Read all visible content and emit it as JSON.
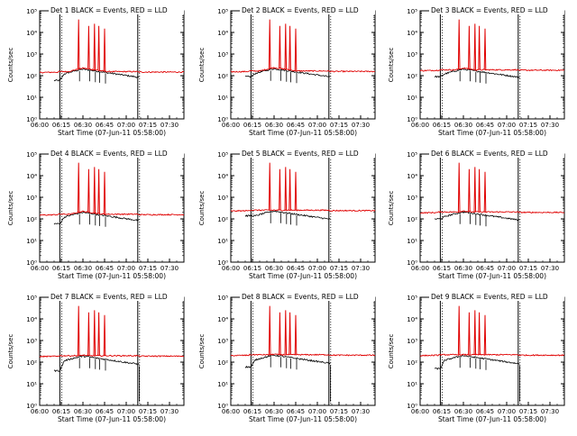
{
  "chart_data": {
    "type": "line",
    "layout": "3x3 grid of small-multiple panels",
    "y_scale": "log",
    "ylim": [
      1,
      100000
    ],
    "ytick_labels": [
      "10⁰",
      "10¹",
      "10²",
      "10³",
      "10⁴",
      "10⁵"
    ],
    "ylabel": "Counts/sec",
    "xlim": [
      "06:00",
      "07:40"
    ],
    "xtick_labels": [
      "06:00",
      "06:15",
      "06:30",
      "06:45",
      "07:00",
      "07:15",
      "07:30"
    ],
    "xlabel": "Start Time (07-Jun-11 05:58:00)",
    "legend": {
      "text": "BLACK = Events, RED = LLD",
      "placement": "top-left, inside title"
    },
    "vertical_markers": [
      "06:14",
      "07:08"
    ],
    "colors": {
      "events": "#000000",
      "lld": "#e00000"
    },
    "panels": [
      {
        "title": "Det 1",
        "events_base": 60,
        "lld_base": 140,
        "peak": 200,
        "late_drop": false
      },
      {
        "title": "Det 2",
        "events_base": 90,
        "lld_base": 150,
        "peak": 210,
        "late_drop": false
      },
      {
        "title": "Det 3",
        "events_base": 90,
        "lld_base": 170,
        "peak": 200,
        "late_drop": false
      },
      {
        "title": "Det 4",
        "events_base": 60,
        "lld_base": 150,
        "peak": 200,
        "late_drop": false
      },
      {
        "title": "Det 5",
        "events_base": 140,
        "lld_base": 230,
        "peak": 230,
        "late_drop": false
      },
      {
        "title": "Det 6",
        "events_base": 100,
        "lld_base": 190,
        "peak": 210,
        "late_drop": false
      },
      {
        "title": "Det 7",
        "events_base": 40,
        "lld_base": 180,
        "peak": 190,
        "late_drop": true
      },
      {
        "title": "Det 8",
        "events_base": 60,
        "lld_base": 200,
        "peak": 210,
        "late_drop": true
      },
      {
        "title": "Det 9",
        "events_base": 50,
        "lld_base": 200,
        "peak": 200,
        "late_drop": true
      }
    ],
    "spikes": {
      "times": [
        "06:27",
        "06:34",
        "06:38",
        "06:41",
        "06:45"
      ],
      "peak_counts": [
        40000,
        20000,
        25000,
        20000,
        15000
      ]
    },
    "series": [
      {
        "name": "Events",
        "color": "#000000"
      },
      {
        "name": "LLD",
        "color": "#e00000"
      }
    ]
  }
}
